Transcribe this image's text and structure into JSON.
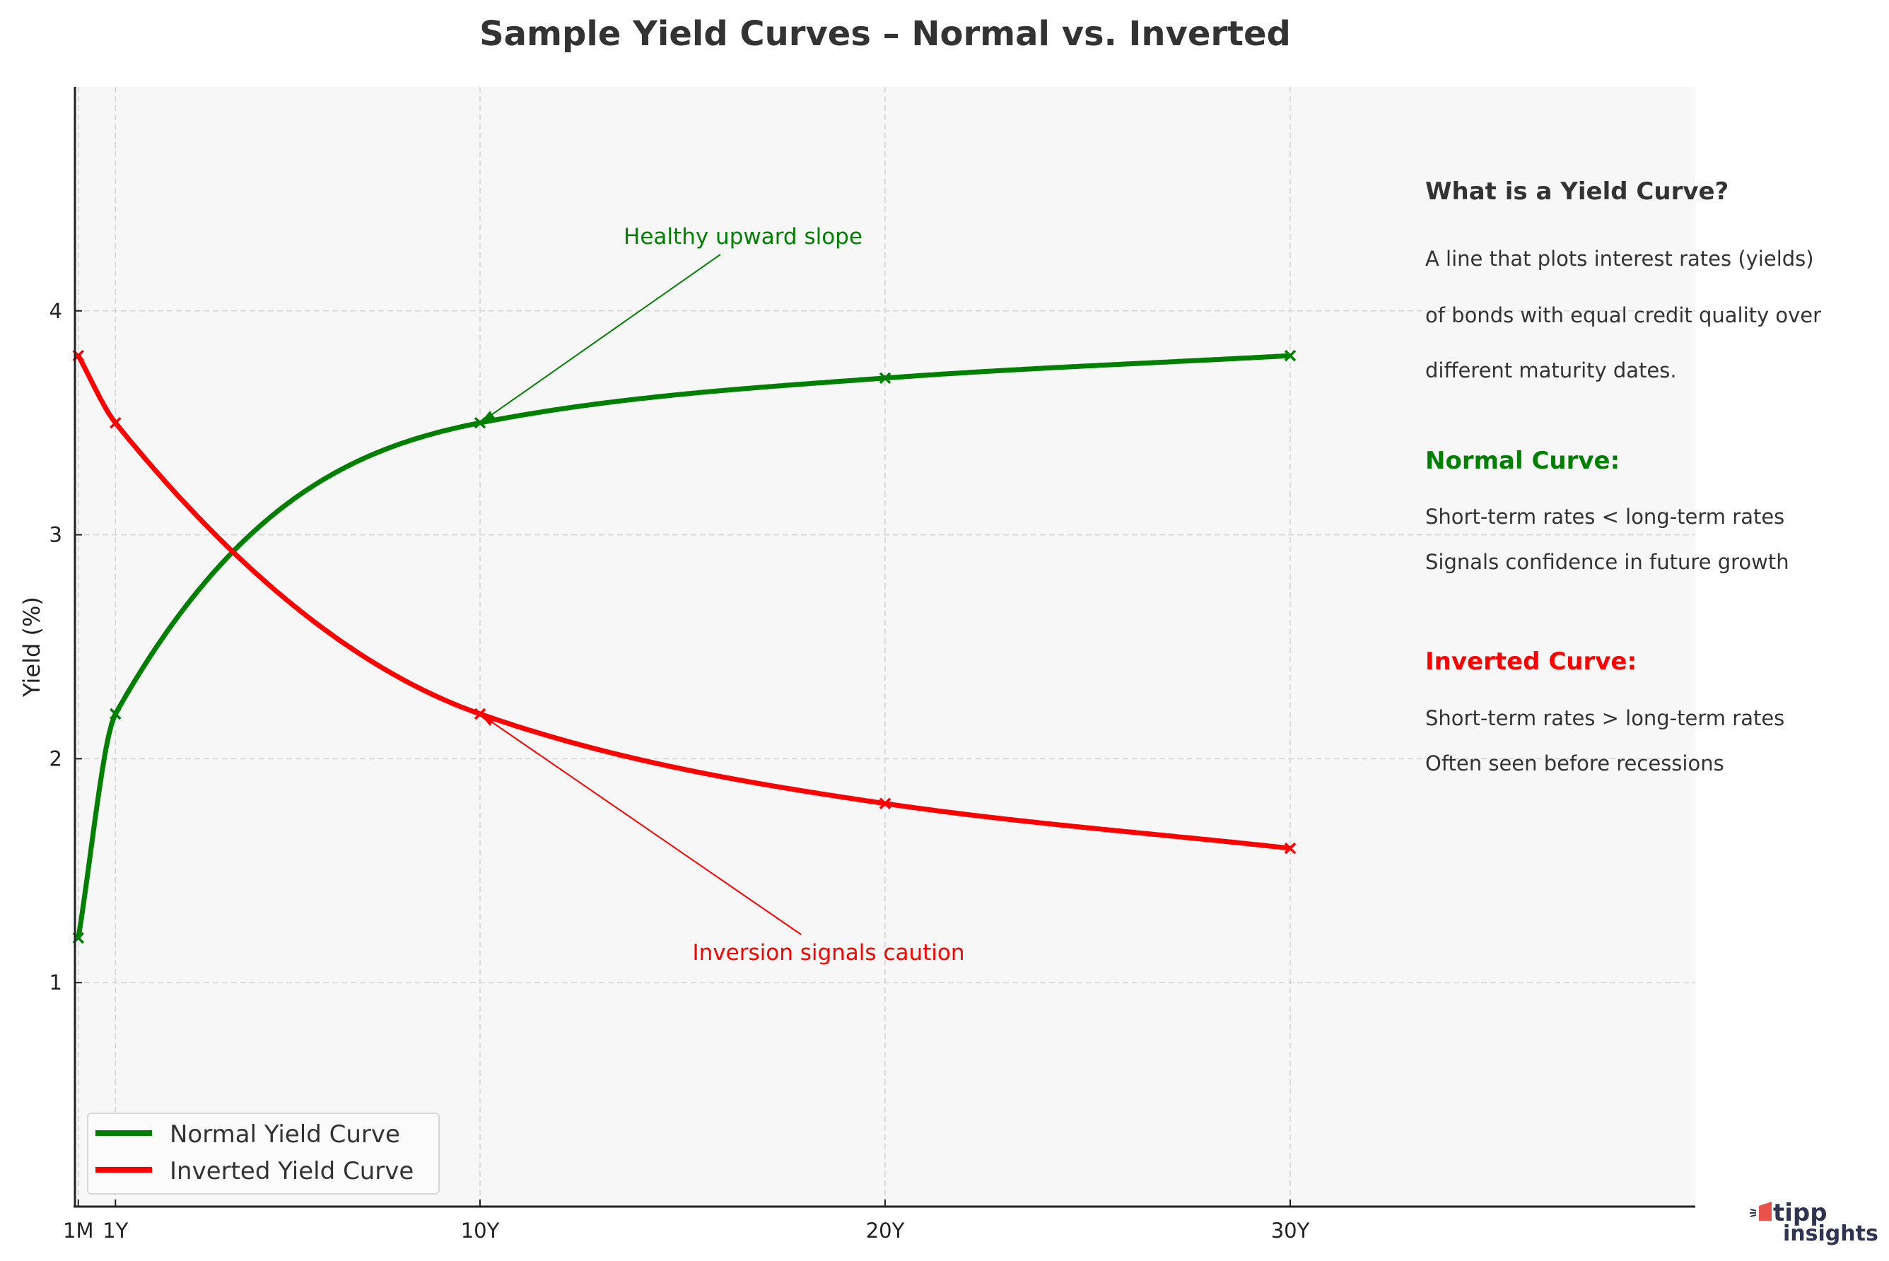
{
  "chart_data": {
    "type": "line",
    "title": "Sample Yield Curves – Normal vs. Inverted",
    "xlabel": "",
    "ylabel": "Yield (%)",
    "x": [
      0.0833,
      1,
      10,
      20,
      30
    ],
    "x_tick_values": [
      0.0833,
      1,
      10,
      20,
      30
    ],
    "x_tick_labels": [
      "1M",
      "1Y",
      "10Y",
      "20Y",
      "30Y"
    ],
    "y_ticks": [
      1,
      2,
      3,
      4
    ],
    "xlim": [
      0,
      40
    ],
    "ylim": [
      0,
      5
    ],
    "grid": true,
    "legend_placement": "lower-left",
    "series": [
      {
        "name": "Normal Yield Curve",
        "color": "#008000",
        "values": [
          1.2,
          2.2,
          3.5,
          3.7,
          3.8
        ]
      },
      {
        "name": "Inverted Yield Curve",
        "color": "#ff0000",
        "values": [
          3.8,
          3.5,
          2.2,
          1.8,
          1.6
        ]
      }
    ],
    "annotations": [
      {
        "text": "Healthy upward slope",
        "x": 10,
        "y": 3.5,
        "color": "#008000"
      },
      {
        "text": "Inversion signals caution",
        "x": 10,
        "y": 2.2,
        "color": "#ff0000"
      }
    ]
  },
  "side_panel": {
    "heading": "What is a Yield Curve?",
    "description": [
      "A line that plots interest rates (yields)",
      "of bonds with equal credit quality over",
      "different maturity dates."
    ],
    "normal_heading": "Normal Curve:",
    "normal_lines": [
      "Short-term rates < long-term rates",
      "Signals confidence in future growth"
    ],
    "inverted_heading": "Inverted Curve:",
    "inverted_lines": [
      "Short-term rates > long-term rates",
      "Often seen before recessions"
    ]
  },
  "logo": {
    "text_top": "tipp",
    "text_bottom": "insights",
    "accent": "#e8524a",
    "color": "#2f3452"
  },
  "colors": {
    "plot_bg": "#f7f7f7",
    "grid": "#d0d0d0",
    "text": "#333333"
  }
}
